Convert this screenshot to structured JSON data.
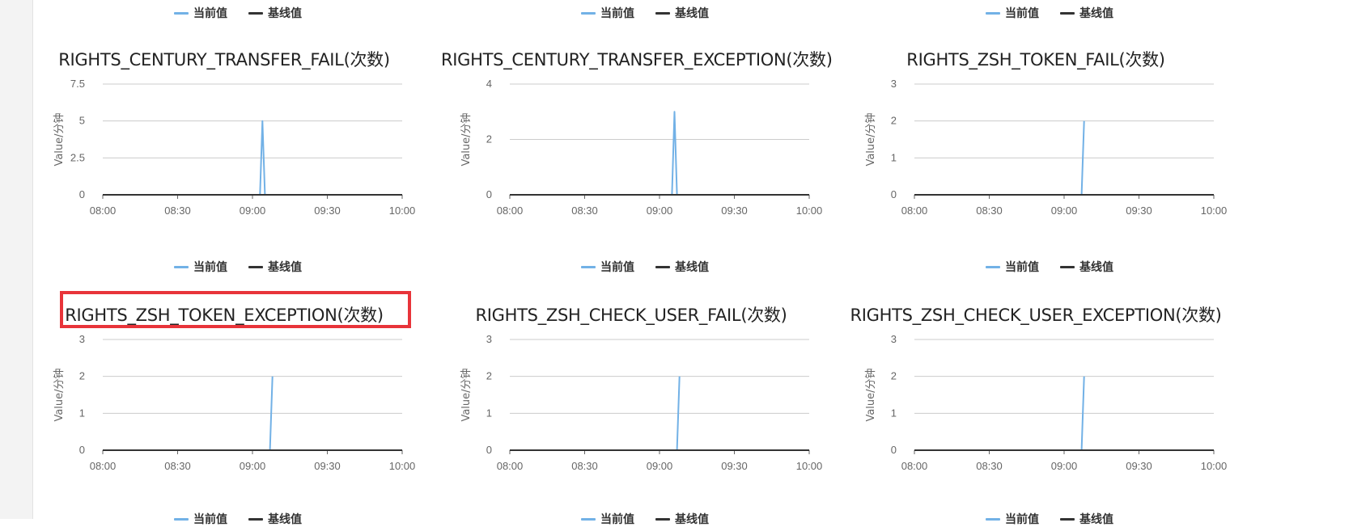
{
  "legend": {
    "current": "当前值",
    "baseline": "基线值"
  },
  "colors": {
    "current": "#72b1e6",
    "baseline": "#333333",
    "grid": "#cccccc",
    "axis_text": "#666666",
    "highlight": "#e8343a"
  },
  "y_axis_label": "Value/分钟",
  "chart_data": [
    {
      "type": "line",
      "title": "RIGHTS_CENTURY_TRANSFER_FAIL(次数)",
      "ylabel": "Value/分钟",
      "ylim": [
        0,
        7.5
      ],
      "yticks": [
        "7.5",
        "5",
        "2.5",
        "0"
      ],
      "xticks": [
        "08:00",
        "08:30",
        "09:00",
        "09:30",
        "10:00"
      ],
      "series": [
        {
          "name": "当前值",
          "x": [
            "08:00",
            "09:03",
            "09:04",
            "09:05",
            "10:00"
          ],
          "values": [
            0,
            0,
            5,
            0,
            0
          ]
        },
        {
          "name": "基线值",
          "x": [
            "08:00",
            "10:00"
          ],
          "values": [
            0,
            0
          ]
        }
      ]
    },
    {
      "type": "line",
      "title": "RIGHTS_CENTURY_TRANSFER_EXCEPTION(次数)",
      "ylabel": "Value/分钟",
      "ylim": [
        0,
        4
      ],
      "yticks": [
        "4",
        "2",
        "0"
      ],
      "xticks": [
        "08:00",
        "08:30",
        "09:00",
        "09:30",
        "10:00"
      ],
      "series": [
        {
          "name": "当前值",
          "x": [
            "08:00",
            "09:05",
            "09:06",
            "09:07",
            "10:00"
          ],
          "values": [
            0,
            0,
            3,
            0,
            0
          ]
        },
        {
          "name": "基线值",
          "x": [
            "08:00",
            "10:00"
          ],
          "values": [
            0,
            0
          ]
        }
      ]
    },
    {
      "type": "line",
      "title": "RIGHTS_ZSH_TOKEN_FAIL(次数)",
      "ylabel": "Value/分钟",
      "ylim": [
        0,
        3
      ],
      "yticks": [
        "3",
        "2",
        "1",
        "0"
      ],
      "xticks": [
        "08:00",
        "08:30",
        "09:00",
        "09:30",
        "10:00"
      ],
      "series": [
        {
          "name": "当前值",
          "x": [
            "08:00",
            "09:07",
            "09:08"
          ],
          "values": [
            0,
            0,
            2
          ]
        },
        {
          "name": "基线值",
          "x": [
            "08:00",
            "10:00"
          ],
          "values": [
            0,
            0
          ]
        }
      ]
    },
    {
      "type": "line",
      "title": "RIGHTS_ZSH_TOKEN_EXCEPTION(次数)",
      "ylabel": "Value/分钟",
      "ylim": [
        0,
        3
      ],
      "yticks": [
        "3",
        "2",
        "1",
        "0"
      ],
      "xticks": [
        "08:00",
        "08:30",
        "09:00",
        "09:30",
        "10:00"
      ],
      "series": [
        {
          "name": "当前值",
          "x": [
            "08:00",
            "09:07",
            "09:08"
          ],
          "values": [
            0,
            0,
            2
          ]
        },
        {
          "name": "基线值",
          "x": [
            "08:00",
            "10:00"
          ],
          "values": [
            0,
            0
          ]
        }
      ]
    },
    {
      "type": "line",
      "title": "RIGHTS_ZSH_CHECK_USER_FAIL(次数)",
      "ylabel": "Value/分钟",
      "ylim": [
        0,
        3
      ],
      "yticks": [
        "3",
        "2",
        "1",
        "0"
      ],
      "xticks": [
        "08:00",
        "08:30",
        "09:00",
        "09:30",
        "10:00"
      ],
      "series": [
        {
          "name": "当前值",
          "x": [
            "08:00",
            "09:07",
            "09:08"
          ],
          "values": [
            0,
            0,
            2
          ]
        },
        {
          "name": "基线值",
          "x": [
            "08:00",
            "10:00"
          ],
          "values": [
            0,
            0
          ]
        }
      ]
    },
    {
      "type": "line",
      "title": "RIGHTS_ZSH_CHECK_USER_EXCEPTION(次数)",
      "ylabel": "Value/分钟",
      "ylim": [
        0,
        3
      ],
      "yticks": [
        "3",
        "2",
        "1",
        "0"
      ],
      "xticks": [
        "08:00",
        "08:30",
        "09:00",
        "09:30",
        "10:00"
      ],
      "series": [
        {
          "name": "当前值",
          "x": [
            "08:00",
            "09:07",
            "09:08"
          ],
          "values": [
            0,
            0,
            2
          ]
        },
        {
          "name": "基线值",
          "x": [
            "08:00",
            "10:00"
          ],
          "values": [
            0,
            0
          ]
        }
      ]
    }
  ]
}
